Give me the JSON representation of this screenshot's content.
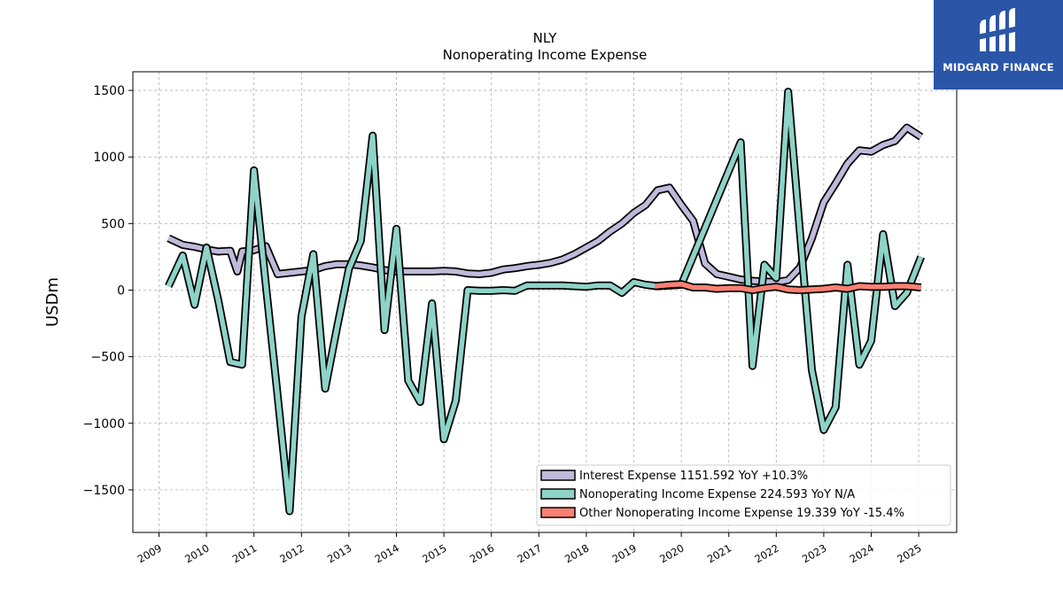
{
  "brand": {
    "name": "MIDGARD FINANCE",
    "icon": "midgard-logo-icon",
    "bg_color": "#2b55a6"
  },
  "chart_data": {
    "type": "line",
    "title": "NLY",
    "subtitle": "Nonoperating Income Expense",
    "xlabel": "",
    "ylabel": "USDm",
    "xlim": [
      2008.45,
      2025.8
    ],
    "ylim": [
      -1820,
      1640
    ],
    "x_ticks": [
      2009,
      2010,
      2011,
      2012,
      2013,
      2014,
      2015,
      2016,
      2017,
      2018,
      2019,
      2020,
      2021,
      2022,
      2023,
      2024,
      2025
    ],
    "y_ticks": [
      -1500,
      -1000,
      -500,
      0,
      500,
      1000,
      1500
    ],
    "y_tick_labels": [
      "−1500",
      "−1000",
      "−500",
      "0",
      "500",
      "1000",
      "1500"
    ],
    "grid": true,
    "legend_position": "lower-right",
    "series": [
      {
        "name": "Interest Expense",
        "legend_label": "Interest Expense  1151.592 YoY +10.3%",
        "color": "#bebada",
        "points": [
          [
            2009.2,
            390
          ],
          [
            2009.5,
            340
          ],
          [
            2009.75,
            325
          ],
          [
            2010.0,
            305
          ],
          [
            2010.25,
            290
          ],
          [
            2010.5,
            295
          ],
          [
            2010.65,
            140
          ],
          [
            2010.75,
            290
          ],
          [
            2011.0,
            300
          ],
          [
            2011.25,
            330
          ],
          [
            2011.5,
            120
          ],
          [
            2011.75,
            130
          ],
          [
            2012.0,
            140
          ],
          [
            2012.25,
            150
          ],
          [
            2012.5,
            180
          ],
          [
            2012.75,
            195
          ],
          [
            2013.0,
            195
          ],
          [
            2013.25,
            185
          ],
          [
            2013.5,
            170
          ],
          [
            2013.75,
            150
          ],
          [
            2014.0,
            140
          ],
          [
            2014.25,
            140
          ],
          [
            2014.5,
            140
          ],
          [
            2014.75,
            140
          ],
          [
            2015.0,
            145
          ],
          [
            2015.25,
            140
          ],
          [
            2015.5,
            125
          ],
          [
            2015.75,
            120
          ],
          [
            2016.0,
            130
          ],
          [
            2016.25,
            155
          ],
          [
            2016.5,
            165
          ],
          [
            2016.75,
            180
          ],
          [
            2017.0,
            190
          ],
          [
            2017.25,
            205
          ],
          [
            2017.5,
            230
          ],
          [
            2017.75,
            270
          ],
          [
            2018.0,
            320
          ],
          [
            2018.25,
            370
          ],
          [
            2018.5,
            440
          ],
          [
            2018.75,
            500
          ],
          [
            2019.0,
            580
          ],
          [
            2019.25,
            640
          ],
          [
            2019.5,
            750
          ],
          [
            2019.75,
            770
          ],
          [
            2020.0,
            640
          ],
          [
            2020.25,
            520
          ],
          [
            2020.5,
            200
          ],
          [
            2020.75,
            120
          ],
          [
            2021.0,
            100
          ],
          [
            2021.25,
            80
          ],
          [
            2021.5,
            70
          ],
          [
            2021.75,
            65
          ],
          [
            2022.0,
            60
          ],
          [
            2022.25,
            75
          ],
          [
            2022.5,
            170
          ],
          [
            2022.75,
            390
          ],
          [
            2023.0,
            660
          ],
          [
            2023.25,
            800
          ],
          [
            2023.5,
            950
          ],
          [
            2023.75,
            1050
          ],
          [
            2024.0,
            1040
          ],
          [
            2024.25,
            1090
          ],
          [
            2024.5,
            1120
          ],
          [
            2024.75,
            1220
          ],
          [
            2025.05,
            1150
          ]
        ]
      },
      {
        "name": "Nonoperating Income Expense",
        "legend_label": "Nonoperating Income Expense  224.593 YoY N/A",
        "color": "#8dd3c7",
        "points": [
          [
            2009.2,
            30
          ],
          [
            2009.5,
            260
          ],
          [
            2009.75,
            -110
          ],
          [
            2010.0,
            320
          ],
          [
            2010.25,
            -80
          ],
          [
            2010.5,
            -540
          ],
          [
            2010.75,
            -560
          ],
          [
            2011.0,
            900
          ],
          [
            2011.25,
            40
          ],
          [
            2011.5,
            -800
          ],
          [
            2011.75,
            -1660
          ],
          [
            2012.0,
            -200
          ],
          [
            2012.25,
            270
          ],
          [
            2012.5,
            -740
          ],
          [
            2012.75,
            -280
          ],
          [
            2013.0,
            160
          ],
          [
            2013.25,
            370
          ],
          [
            2013.5,
            1160
          ],
          [
            2013.75,
            -300
          ],
          [
            2014.0,
            460
          ],
          [
            2014.25,
            -680
          ],
          [
            2014.5,
            -840
          ],
          [
            2014.75,
            -100
          ],
          [
            2015.0,
            -1120
          ],
          [
            2015.25,
            -830
          ],
          [
            2015.5,
            0
          ],
          [
            2015.75,
            -5
          ],
          [
            2016.0,
            -5
          ],
          [
            2016.25,
            0
          ],
          [
            2016.5,
            -5
          ],
          [
            2016.75,
            35
          ],
          [
            2017.0,
            35
          ],
          [
            2017.25,
            35
          ],
          [
            2017.5,
            35
          ],
          [
            2017.75,
            30
          ],
          [
            2018.0,
            25
          ],
          [
            2018.25,
            35
          ],
          [
            2018.5,
            35
          ],
          [
            2018.75,
            -20
          ],
          [
            2019.0,
            60
          ],
          [
            2019.25,
            40
          ],
          [
            2019.5,
            30
          ],
          [
            2019.75,
            35
          ],
          [
            2020.0,
            40
          ],
          [
            2021.25,
            1110
          ],
          [
            2021.5,
            -570
          ],
          [
            2021.75,
            190
          ],
          [
            2022.0,
            90
          ],
          [
            2022.25,
            1490
          ],
          [
            2022.5,
            430
          ],
          [
            2022.75,
            -600
          ],
          [
            2023.0,
            -1050
          ],
          [
            2023.25,
            -880
          ],
          [
            2023.5,
            190
          ],
          [
            2023.75,
            -560
          ],
          [
            2024.0,
            -380
          ],
          [
            2024.25,
            420
          ],
          [
            2024.5,
            -120
          ],
          [
            2024.75,
            -20
          ],
          [
            2025.05,
            250
          ]
        ]
      },
      {
        "name": "Other Nonoperating Income Expense",
        "legend_label": "Other Nonoperating Income Expense  19.339 YoY -15.4%",
        "color": "#fb8072",
        "points": [
          [
            2019.45,
            30
          ],
          [
            2019.75,
            40
          ],
          [
            2020.0,
            45
          ],
          [
            2020.25,
            20
          ],
          [
            2020.5,
            20
          ],
          [
            2020.75,
            10
          ],
          [
            2021.0,
            15
          ],
          [
            2021.25,
            15
          ],
          [
            2021.5,
            0
          ],
          [
            2021.75,
            15
          ],
          [
            2022.0,
            25
          ],
          [
            2022.25,
            5
          ],
          [
            2022.5,
            0
          ],
          [
            2022.75,
            5
          ],
          [
            2023.0,
            10
          ],
          [
            2023.25,
            20
          ],
          [
            2023.5,
            10
          ],
          [
            2023.75,
            30
          ],
          [
            2024.0,
            25
          ],
          [
            2024.25,
            25
          ],
          [
            2024.5,
            30
          ],
          [
            2024.75,
            30
          ],
          [
            2025.05,
            20
          ]
        ]
      }
    ]
  }
}
